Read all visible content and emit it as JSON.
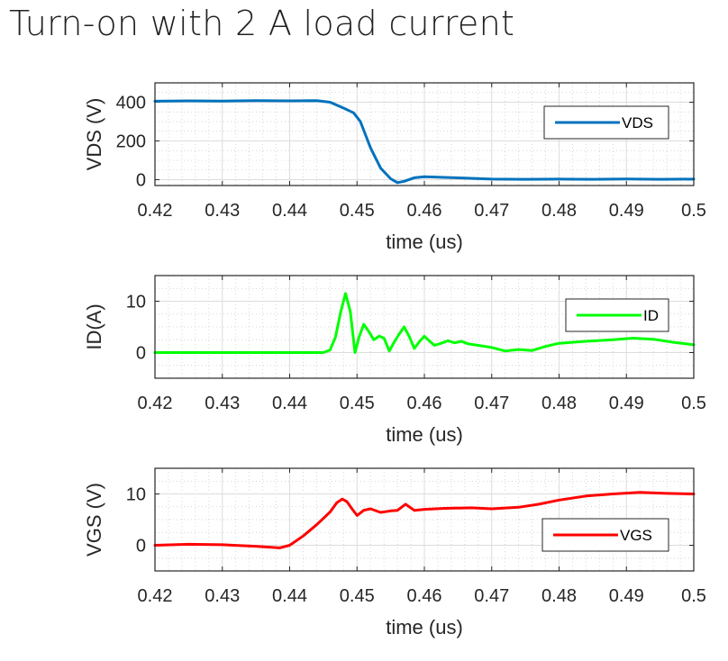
{
  "title": "Turn-on with 2 A load current",
  "chart_data": [
    {
      "type": "line",
      "xlabel": "time (us)",
      "ylabel": "VDS (V)",
      "xlim": [
        0.42,
        0.5
      ],
      "ylim": [
        -30,
        500
      ],
      "xticks": [
        "0.42",
        "0.43",
        "0.44",
        "0.45",
        "0.46",
        "0.47",
        "0.48",
        "0.49",
        "0.5"
      ],
      "yticks": [
        "0",
        "200",
        "400"
      ],
      "grid": true,
      "minor_grid": true,
      "legend_position": "top-right",
      "series": [
        {
          "name": "VDS",
          "color": "#0072BD",
          "x": [
            0.42,
            0.425,
            0.43,
            0.435,
            0.44,
            0.444,
            0.446,
            0.448,
            0.4495,
            0.4505,
            0.452,
            0.4535,
            0.455,
            0.456,
            0.457,
            0.4585,
            0.46,
            0.463,
            0.466,
            0.47,
            0.475,
            0.48,
            0.485,
            0.49,
            0.495,
            0.5
          ],
          "y": [
            405,
            407,
            406,
            408,
            407,
            408,
            400,
            370,
            345,
            300,
            165,
            60,
            5,
            -15,
            -8,
            10,
            15,
            12,
            8,
            3,
            2,
            3,
            2,
            4,
            2,
            3
          ]
        }
      ]
    },
    {
      "type": "line",
      "xlabel": "time (us)",
      "ylabel": "ID(A)",
      "xlim": [
        0.42,
        0.5
      ],
      "ylim": [
        -5,
        15
      ],
      "xticks": [
        "0.42",
        "0.43",
        "0.44",
        "0.45",
        "0.46",
        "0.47",
        "0.48",
        "0.49",
        "0.5"
      ],
      "yticks": [
        "0",
        "10"
      ],
      "grid": true,
      "minor_grid": true,
      "legend_position": "top-right",
      "series": [
        {
          "name": "ID",
          "color": "#00FF00",
          "x": [
            0.42,
            0.43,
            0.44,
            0.445,
            0.446,
            0.4468,
            0.4476,
            0.4483,
            0.449,
            0.4497,
            0.4503,
            0.451,
            0.4518,
            0.4525,
            0.4533,
            0.454,
            0.4548,
            0.4555,
            0.4562,
            0.457,
            0.4578,
            0.4585,
            0.4593,
            0.46,
            0.4608,
            0.4615,
            0.4625,
            0.4635,
            0.4645,
            0.4655,
            0.4665,
            0.468,
            0.47,
            0.472,
            0.474,
            0.476,
            0.478,
            0.48,
            0.484,
            0.488,
            0.491,
            0.494,
            0.497,
            0.5
          ],
          "y": [
            0,
            0,
            0,
            0,
            0.5,
            3,
            8,
            11.5,
            8,
            0,
            3,
            5.5,
            4,
            2.5,
            3.2,
            2.8,
            0.3,
            2,
            3.5,
            5,
            3,
            0.8,
            2.2,
            3.2,
            2.2,
            1.4,
            1.8,
            2.3,
            1.9,
            2.2,
            1.7,
            1.4,
            1,
            0.3,
            0.6,
            0.4,
            1.2,
            1.8,
            2.2,
            2.5,
            2.8,
            2.6,
            2,
            1.5
          ]
        }
      ]
    },
    {
      "type": "line",
      "xlabel": "time (us)",
      "ylabel": "VGS (V)",
      "xlim": [
        0.42,
        0.5
      ],
      "ylim": [
        -5,
        15
      ],
      "xticks": [
        "0.42",
        "0.43",
        "0.44",
        "0.45",
        "0.46",
        "0.47",
        "0.48",
        "0.49",
        "0.5"
      ],
      "yticks": [
        "0",
        "10"
      ],
      "grid": true,
      "minor_grid": true,
      "legend_position": "bottom-right",
      "series": [
        {
          "name": "VGS",
          "color": "#FF0000",
          "x": [
            0.42,
            0.425,
            0.43,
            0.435,
            0.4385,
            0.44,
            0.442,
            0.444,
            0.446,
            0.447,
            0.4478,
            0.4485,
            0.4492,
            0.45,
            0.451,
            0.452,
            0.4535,
            0.455,
            0.456,
            0.4572,
            0.4585,
            0.46,
            0.463,
            0.467,
            0.47,
            0.474,
            0.477,
            0.48,
            0.484,
            0.488,
            0.492,
            0.496,
            0.5
          ],
          "y": [
            0,
            0.2,
            0.1,
            -0.2,
            -0.5,
            0,
            1.8,
            4,
            6.5,
            8.3,
            9,
            8.5,
            7.2,
            5.8,
            6.8,
            7.1,
            6.4,
            6.7,
            6.8,
            8,
            6.8,
            7,
            7.2,
            7.3,
            7.1,
            7.4,
            8,
            8.8,
            9.6,
            10,
            10.3,
            10.1,
            10
          ]
        }
      ]
    }
  ]
}
